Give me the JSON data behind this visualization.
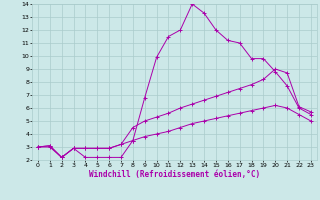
{
  "xlabel": "Windchill (Refroidissement éolien,°C)",
  "xlim": [
    -0.5,
    23.5
  ],
  "ylim": [
    2,
    14
  ],
  "xticks": [
    0,
    1,
    2,
    3,
    4,
    5,
    6,
    7,
    8,
    9,
    10,
    11,
    12,
    13,
    14,
    15,
    16,
    17,
    18,
    19,
    20,
    21,
    22,
    23
  ],
  "yticks": [
    2,
    3,
    4,
    5,
    6,
    7,
    8,
    9,
    10,
    11,
    12,
    13,
    14
  ],
  "bg_color": "#cce8e8",
  "grid_color": "#aacccc",
  "line_color": "#aa00aa",
  "line1_x": [
    0,
    1,
    2,
    3,
    4,
    5,
    6,
    7,
    8,
    9,
    10,
    11,
    12,
    13,
    14,
    15,
    16,
    17,
    18,
    19,
    20,
    21,
    22,
    23
  ],
  "line1_y": [
    3.0,
    3.0,
    2.2,
    2.9,
    2.2,
    2.2,
    2.2,
    2.2,
    3.5,
    6.8,
    9.9,
    11.5,
    12.0,
    14.0,
    13.3,
    12.0,
    11.2,
    11.0,
    9.8,
    9.8,
    8.8,
    7.7,
    6.0,
    5.5
  ],
  "line2_x": [
    0,
    1,
    2,
    3,
    4,
    5,
    6,
    7,
    8,
    9,
    10,
    11,
    12,
    13,
    14,
    15,
    16,
    17,
    18,
    19,
    20,
    21,
    22,
    23
  ],
  "line2_y": [
    3.0,
    3.1,
    2.2,
    2.9,
    2.9,
    2.9,
    2.9,
    3.2,
    4.5,
    5.0,
    5.3,
    5.6,
    6.0,
    6.3,
    6.6,
    6.9,
    7.2,
    7.5,
    7.8,
    8.2,
    9.0,
    8.7,
    6.1,
    5.7
  ],
  "line3_x": [
    0,
    1,
    2,
    3,
    4,
    5,
    6,
    7,
    8,
    9,
    10,
    11,
    12,
    13,
    14,
    15,
    16,
    17,
    18,
    19,
    20,
    21,
    22,
    23
  ],
  "line3_y": [
    3.0,
    3.1,
    2.2,
    2.9,
    2.9,
    2.9,
    2.9,
    3.2,
    3.5,
    3.8,
    4.0,
    4.2,
    4.5,
    4.8,
    5.0,
    5.2,
    5.4,
    5.6,
    5.8,
    6.0,
    6.2,
    6.0,
    5.5,
    5.0
  ]
}
